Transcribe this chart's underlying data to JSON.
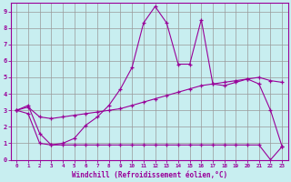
{
  "xlabel": "Windchill (Refroidissement éolien,°C)",
  "bg_color": "#c8eef0",
  "line_color": "#990099",
  "grid_color": "#999999",
  "xlim": [
    -0.5,
    23.5
  ],
  "ylim": [
    0,
    9.5
  ],
  "xticks": [
    0,
    1,
    2,
    3,
    4,
    5,
    6,
    7,
    8,
    9,
    10,
    11,
    12,
    13,
    14,
    15,
    16,
    17,
    18,
    19,
    20,
    21,
    22,
    23
  ],
  "yticks": [
    0,
    1,
    2,
    3,
    4,
    5,
    6,
    7,
    8,
    9
  ],
  "series1_x": [
    0,
    1,
    2,
    3,
    4,
    5,
    6,
    7,
    8,
    9,
    10,
    11,
    12,
    13,
    14,
    15,
    16,
    17,
    18,
    19,
    20,
    21,
    22,
    23
  ],
  "series1_y": [
    3.0,
    3.3,
    1.6,
    0.9,
    1.0,
    1.3,
    2.1,
    2.6,
    3.3,
    4.3,
    5.6,
    8.3,
    9.3,
    8.3,
    5.8,
    5.8,
    8.5,
    4.6,
    4.5,
    4.7,
    4.9,
    4.6,
    3.0,
    0.8
  ],
  "series2_x": [
    0,
    1,
    2,
    3,
    4,
    5,
    6,
    7,
    8,
    9,
    10,
    11,
    12,
    13,
    14,
    15,
    16,
    17,
    18,
    19,
    20,
    21,
    22,
    23
  ],
  "series2_y": [
    3.0,
    3.2,
    2.6,
    2.5,
    2.6,
    2.7,
    2.8,
    2.9,
    3.0,
    3.1,
    3.3,
    3.5,
    3.7,
    3.9,
    4.1,
    4.3,
    4.5,
    4.6,
    4.7,
    4.8,
    4.9,
    5.0,
    4.8,
    4.7
  ],
  "series3_x": [
    0,
    1,
    2,
    3,
    4,
    5,
    6,
    7,
    8,
    9,
    10,
    11,
    12,
    13,
    14,
    15,
    16,
    17,
    18,
    19,
    20,
    21,
    22,
    23
  ],
  "series3_y": [
    3.0,
    2.8,
    1.0,
    0.9,
    0.9,
    0.9,
    0.9,
    0.9,
    0.9,
    0.9,
    0.9,
    0.9,
    0.9,
    0.9,
    0.9,
    0.9,
    0.9,
    0.9,
    0.9,
    0.9,
    0.9,
    0.9,
    0.0,
    0.8
  ]
}
